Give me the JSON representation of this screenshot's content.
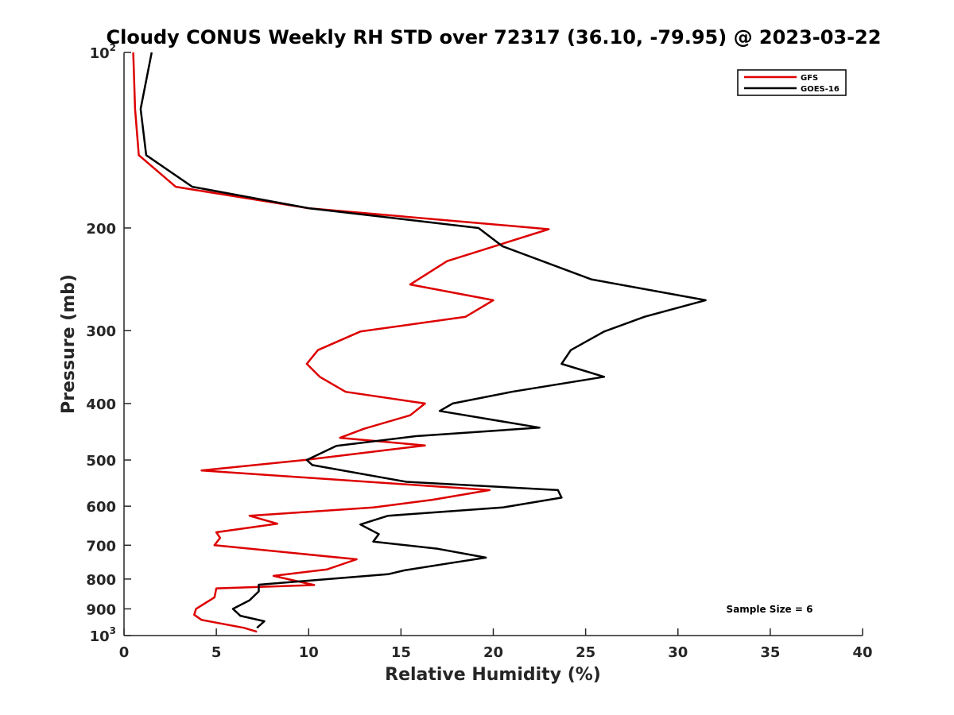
{
  "chart_data": {
    "type": "line",
    "title": "Cloudy CONUS Weekly RH STD over 72317 (36.10, -79.95) @ 2023-03-22",
    "xlabel": "Relative Humidity (%)",
    "ylabel": "Pressure (mb)",
    "xlim": [
      0,
      40
    ],
    "ylim": [
      100,
      1000
    ],
    "yscale": "log",
    "y_reversed": true,
    "x_ticks": [
      "0",
      "5",
      "10",
      "15",
      "20",
      "25",
      "30",
      "35",
      "40"
    ],
    "y_ticks": [
      {
        "value": 100,
        "base": "10",
        "exp": "2"
      },
      {
        "value": 200,
        "label": "200"
      },
      {
        "value": 300,
        "label": "300"
      },
      {
        "value": 400,
        "label": "400"
      },
      {
        "value": 500,
        "label": "500"
      },
      {
        "value": 600,
        "label": "600"
      },
      {
        "value": 700,
        "label": "700"
      },
      {
        "value": 800,
        "label": "800"
      },
      {
        "value": 900,
        "label": "900"
      },
      {
        "value": 1000,
        "base": "10",
        "exp": "3"
      }
    ],
    "grid": false,
    "legend_position": "top-right",
    "annotation": "Sample Size = 6",
    "series": [
      {
        "name": "GFS",
        "color": "#dd0000",
        "points": [
          [
            0.5,
            100
          ],
          [
            0.6,
            125
          ],
          [
            0.8,
            150
          ],
          [
            2.8,
            170
          ],
          [
            10.0,
            185
          ],
          [
            23.0,
            201
          ],
          [
            17.5,
            228
          ],
          [
            15.5,
            250
          ],
          [
            20.0,
            266
          ],
          [
            18.5,
            284
          ],
          [
            12.8,
            301
          ],
          [
            10.5,
            324
          ],
          [
            9.9,
            342
          ],
          [
            10.6,
            360
          ],
          [
            12.0,
            382
          ],
          [
            16.3,
            400
          ],
          [
            15.5,
            419
          ],
          [
            13.0,
            442
          ],
          [
            11.7,
            458
          ],
          [
            16.3,
            472
          ],
          [
            9.8,
            500
          ],
          [
            4.2,
            521
          ],
          [
            19.8,
            563
          ],
          [
            16.7,
            585
          ],
          [
            13.5,
            603
          ],
          [
            6.8,
            623
          ],
          [
            8.3,
            643
          ],
          [
            5.0,
            665
          ],
          [
            5.2,
            680
          ],
          [
            4.9,
            700
          ],
          [
            12.6,
            740
          ],
          [
            11.0,
            770
          ],
          [
            8.1,
            790
          ],
          [
            10.3,
            819
          ],
          [
            5.0,
            830
          ],
          [
            4.9,
            860
          ],
          [
            3.9,
            900
          ],
          [
            3.8,
            921
          ],
          [
            4.2,
            940
          ],
          [
            6.5,
            970
          ],
          [
            7.2,
            985
          ]
        ]
      },
      {
        "name": "GOES-16",
        "color": "#000000",
        "points": [
          [
            1.5,
            100
          ],
          [
            0.9,
            125
          ],
          [
            1.2,
            150
          ],
          [
            3.7,
            170
          ],
          [
            10.0,
            185
          ],
          [
            19.2,
            200
          ],
          [
            20.5,
            215
          ],
          [
            25.3,
            245
          ],
          [
            31.5,
            266
          ],
          [
            28.2,
            284
          ],
          [
            26.0,
            301
          ],
          [
            24.2,
            324
          ],
          [
            23.7,
            342
          ],
          [
            26.0,
            360
          ],
          [
            21.0,
            382
          ],
          [
            17.8,
            400
          ],
          [
            17.1,
            412
          ],
          [
            22.5,
            440
          ],
          [
            15.8,
            455
          ],
          [
            11.5,
            473
          ],
          [
            9.9,
            500
          ],
          [
            10.2,
            510
          ],
          [
            15.3,
            545
          ],
          [
            23.5,
            563
          ],
          [
            23.7,
            580
          ],
          [
            20.5,
            603
          ],
          [
            14.3,
            623
          ],
          [
            12.8,
            645
          ],
          [
            13.8,
            670
          ],
          [
            13.5,
            690
          ],
          [
            17.0,
            710
          ],
          [
            19.6,
            735
          ],
          [
            17.8,
            750
          ],
          [
            15.2,
            773
          ],
          [
            14.3,
            785
          ],
          [
            7.3,
            818
          ],
          [
            7.3,
            840
          ],
          [
            6.8,
            870
          ],
          [
            5.9,
            900
          ],
          [
            6.3,
            925
          ],
          [
            7.6,
            945
          ],
          [
            7.2,
            970
          ]
        ]
      }
    ]
  },
  "colors": {
    "axis": "#262626",
    "gfs": "#dd0000",
    "goes": "#000000",
    "legend_border": "#000000"
  }
}
